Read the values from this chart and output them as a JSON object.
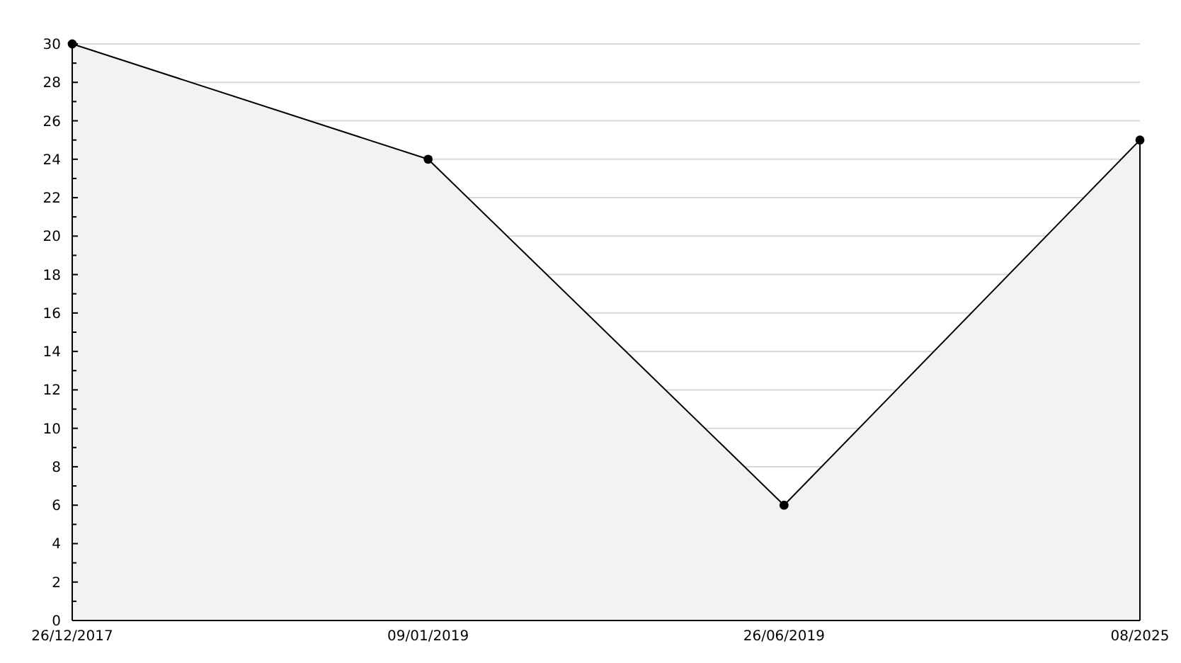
{
  "chart_data": {
    "type": "area",
    "categories": [
      "26/12/2017",
      "09/01/2019",
      "26/06/2019",
      "08/2025"
    ],
    "series": [
      {
        "color": "#f2f2f2",
        "values": [
          30,
          24,
          6,
          25
        ]
      }
    ],
    "ylim": [
      0,
      30
    ],
    "yticks": [
      0,
      {
        "value": 1,
        "label": null
      },
      2,
      {
        "value": 3,
        "label": null
      },
      4,
      {
        "value": 5,
        "label": null
      },
      6,
      {
        "value": 7,
        "label": null
      },
      8,
      {
        "value": 9,
        "label": null
      },
      10,
      {
        "value": 11,
        "label": null
      },
      12,
      {
        "value": 13,
        "label": null
      },
      14,
      {
        "value": 15,
        "label": null
      },
      16,
      {
        "value": 17,
        "label": null
      },
      18,
      {
        "value": 19,
        "label": null
      },
      20,
      {
        "value": 21,
        "label": null
      },
      22,
      {
        "value": 23,
        "label": null
      },
      24,
      {
        "value": 25,
        "label": null
      },
      26,
      {
        "value": 27,
        "label": null
      },
      28,
      {
        "value": 29,
        "label": null
      },
      30
    ],
    "grid": "y",
    "marker": "circle",
    "line_style": "solid"
  }
}
